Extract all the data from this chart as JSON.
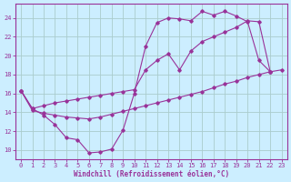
{
  "xlabel": "Windchill (Refroidissement éolien,°C)",
  "background_color": "#cceeff",
  "line_color": "#993399",
  "grid_color": "#aacccc",
  "xlim": [
    -0.5,
    23.5
  ],
  "ylim": [
    9,
    25.5
  ],
  "yticks": [
    10,
    12,
    14,
    16,
    18,
    20,
    22,
    24
  ],
  "xticks": [
    0,
    1,
    2,
    3,
    4,
    5,
    6,
    7,
    8,
    9,
    10,
    11,
    12,
    13,
    14,
    15,
    16,
    17,
    18,
    19,
    20,
    21,
    22,
    23
  ],
  "line1_x": [
    0,
    1,
    2,
    3,
    4,
    5,
    6,
    7,
    8,
    9,
    10,
    11,
    12,
    13,
    14,
    15,
    16,
    17,
    18,
    19,
    20,
    21,
    22
  ],
  "line1_y": [
    16.3,
    14.4,
    13.7,
    12.7,
    11.3,
    11.1,
    9.7,
    9.8,
    10.1,
    12.1,
    16.0,
    21.0,
    23.5,
    24.0,
    23.9,
    23.7,
    24.7,
    24.3,
    24.7,
    24.2,
    23.6,
    19.5,
    18.3
  ],
  "line2_x": [
    0,
    1,
    2,
    3,
    4,
    5,
    6,
    7,
    8,
    9,
    10,
    11,
    12,
    13,
    14,
    15,
    16,
    17,
    18,
    19,
    20,
    21,
    22
  ],
  "line2_y": [
    16.3,
    14.4,
    14.7,
    15.0,
    15.2,
    15.4,
    15.6,
    15.8,
    16.0,
    16.2,
    16.4,
    18.5,
    19.5,
    20.2,
    18.5,
    20.5,
    21.5,
    22.0,
    22.5,
    23.0,
    23.7,
    23.6,
    18.3
  ],
  "line3_x": [
    0,
    1,
    2,
    3,
    4,
    5,
    6,
    7,
    8,
    9,
    10,
    11,
    12,
    13,
    14,
    15,
    16,
    17,
    18,
    19,
    20,
    21,
    22,
    23
  ],
  "line3_y": [
    16.3,
    14.2,
    13.9,
    13.7,
    13.5,
    13.4,
    13.3,
    13.5,
    13.8,
    14.1,
    14.4,
    14.7,
    15.0,
    15.3,
    15.6,
    15.9,
    16.2,
    16.6,
    17.0,
    17.3,
    17.7,
    18.0,
    18.3,
    18.5
  ]
}
